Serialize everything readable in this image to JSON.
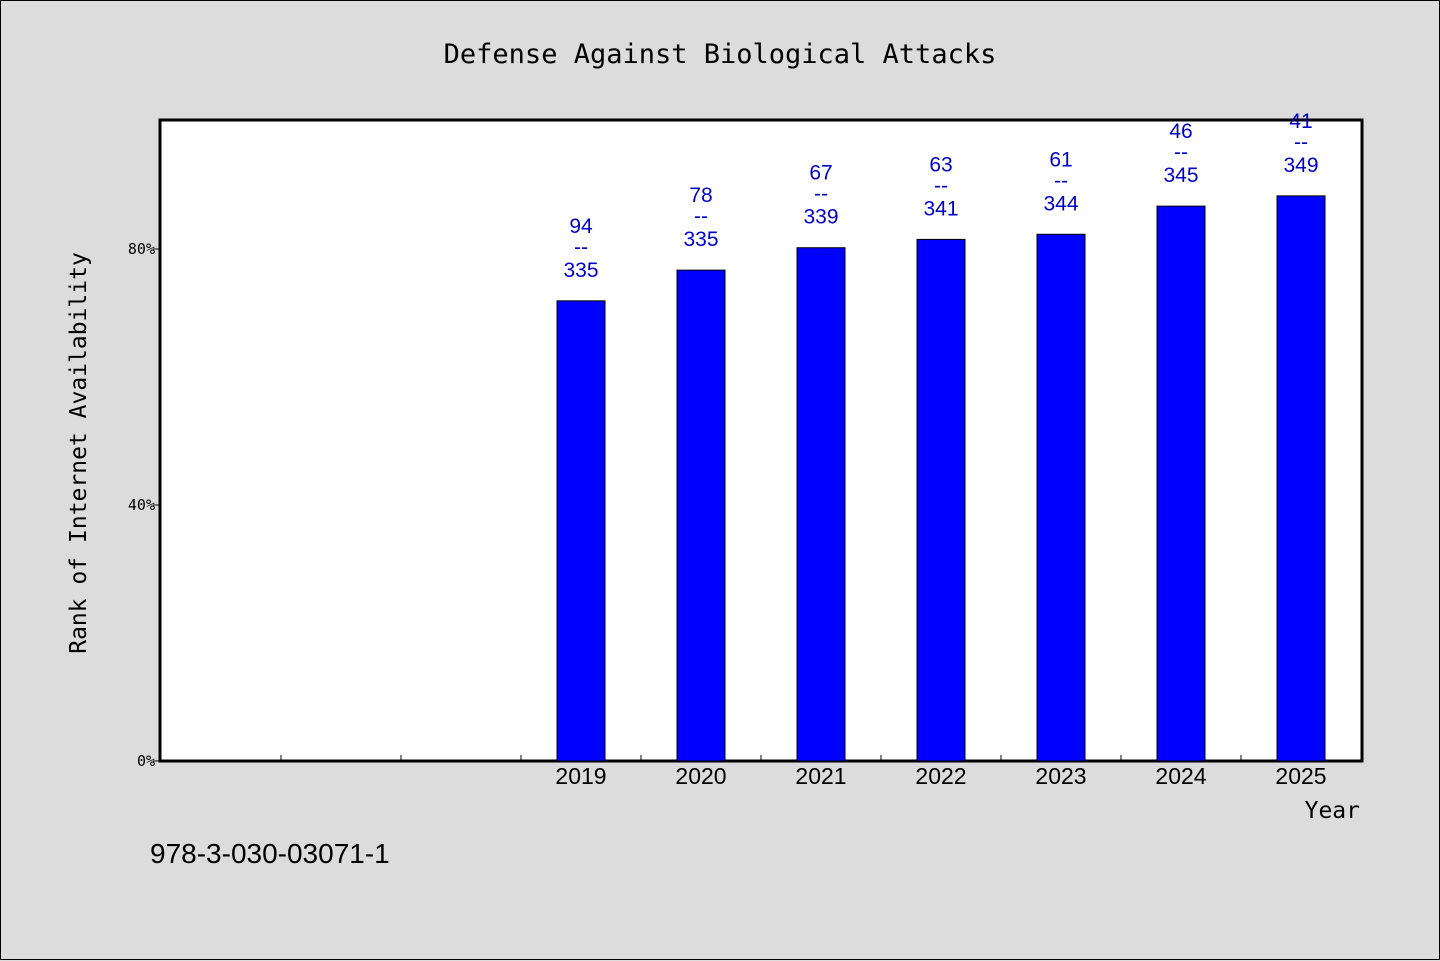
{
  "footer_text": "978-3-030-03071-1",
  "colors": {
    "bar": "#0000ff",
    "label": "#0000cc",
    "background": "#dcdcdc",
    "plot": "#ffffff"
  },
  "chart_data": {
    "type": "bar",
    "title": "Defense Against Biological Attacks",
    "xlabel": "Year",
    "ylabel": "Rank of Internet Availability",
    "ylim": [
      0,
      100
    ],
    "yticks": [
      0,
      40,
      80
    ],
    "ytick_labels": [
      "0%",
      "40%",
      "80%"
    ],
    "categories": [
      "2019",
      "2020",
      "2021",
      "2022",
      "2023",
      "2024",
      "2025"
    ],
    "values": [
      71.9,
      76.7,
      80.2,
      81.5,
      82.3,
      86.7,
      88.3
    ],
    "data_labels": [
      {
        "rank": "94",
        "sep": "--",
        "total": "335"
      },
      {
        "rank": "78",
        "sep": "--",
        "total": "335"
      },
      {
        "rank": "67",
        "sep": "--",
        "total": "339"
      },
      {
        "rank": "63",
        "sep": "--",
        "total": "341"
      },
      {
        "rank": "61",
        "sep": "--",
        "total": "344"
      },
      {
        "rank": "46",
        "sep": "--",
        "total": "345"
      },
      {
        "rank": "41",
        "sep": "--",
        "total": "349"
      }
    ],
    "grid": false,
    "legend": "none"
  }
}
